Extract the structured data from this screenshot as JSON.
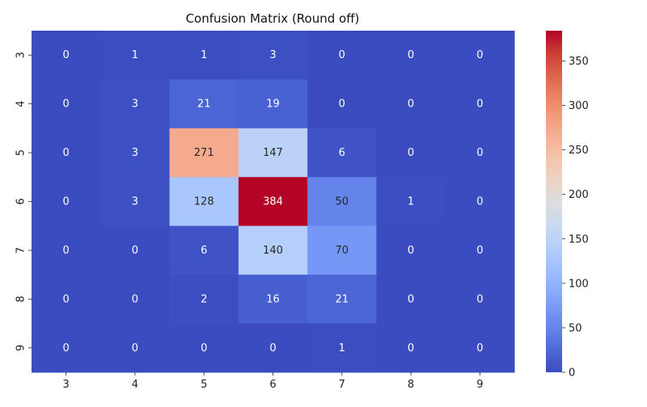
{
  "chart_data": {
    "type": "heatmap",
    "title": "Confusion Matrix (Round off)",
    "xlabel": "",
    "ylabel": "",
    "x_categories": [
      "3",
      "4",
      "5",
      "6",
      "7",
      "8",
      "9"
    ],
    "y_categories": [
      "3",
      "4",
      "5",
      "6",
      "7",
      "8",
      "9"
    ],
    "values": [
      [
        0,
        1,
        1,
        3,
        0,
        0,
        0
      ],
      [
        0,
        3,
        21,
        19,
        0,
        0,
        0
      ],
      [
        0,
        3,
        271,
        147,
        6,
        0,
        0
      ],
      [
        0,
        3,
        128,
        384,
        50,
        1,
        0
      ],
      [
        0,
        0,
        6,
        140,
        70,
        0,
        0
      ],
      [
        0,
        0,
        2,
        16,
        21,
        0,
        0
      ],
      [
        0,
        0,
        0,
        0,
        1,
        0,
        0
      ]
    ],
    "colormap": "coolwarm",
    "value_range": [
      0,
      384
    ],
    "colorbar_ticks": [
      0,
      50,
      100,
      150,
      200,
      250,
      300,
      350
    ],
    "annotations": true,
    "grid": false
  }
}
